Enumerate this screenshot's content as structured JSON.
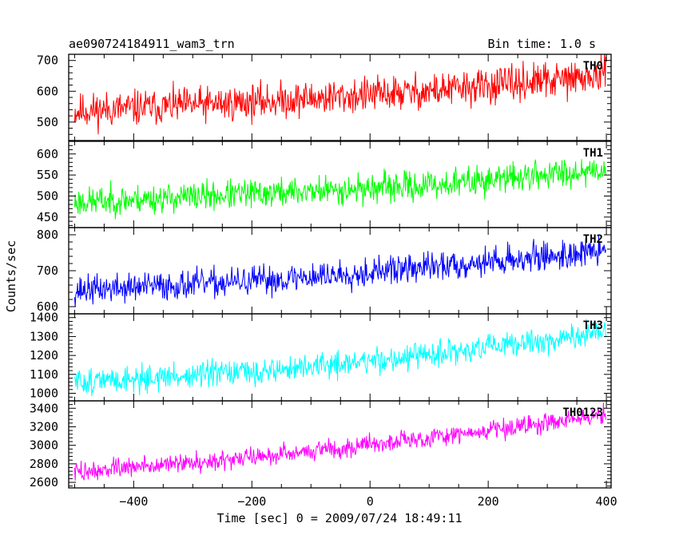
{
  "header": {
    "title": "ae090724184911_wam3_trn",
    "bin_time": "Bin time: 1.0 s"
  },
  "chart_data": {
    "type": "line",
    "xlabel": "Time [sec] 0 = 2009/07/24 18:49:11",
    "ylabel": "Counts/sec",
    "xlim": [
      -510,
      408
    ],
    "x_ticks": [
      -400,
      -200,
      0,
      200,
      400
    ],
    "x": {
      "start": -500,
      "end": 399,
      "step": 1
    },
    "series": [
      {
        "name": "TH0",
        "color": "#ff0000",
        "ylim": [
          440,
          720
        ],
        "y_ticks": [
          500,
          600,
          700
        ],
        "trend": [
          [
            -500,
            535
          ],
          [
            -200,
            565
          ],
          [
            100,
            600
          ],
          [
            400,
            650
          ]
        ],
        "noise": 50,
        "seed": 11
      },
      {
        "name": "TH1",
        "color": "#00ff00",
        "ylim": [
          425,
          630
        ],
        "y_ticks": [
          450,
          500,
          550,
          600
        ],
        "trend": [
          [
            -500,
            485
          ],
          [
            -200,
            505
          ],
          [
            100,
            525
          ],
          [
            400,
            565
          ]
        ],
        "noise": 30,
        "seed": 23
      },
      {
        "name": "TH2",
        "color": "#0000ff",
        "ylim": [
          580,
          820
        ],
        "y_ticks": [
          600,
          700,
          800
        ],
        "trend": [
          [
            -500,
            645
          ],
          [
            -200,
            670
          ],
          [
            100,
            710
          ],
          [
            400,
            755
          ]
        ],
        "noise": 35,
        "seed": 37
      },
      {
        "name": "TH3",
        "color": "#00ffff",
        "ylim": [
          960,
          1420
        ],
        "y_ticks": [
          1000,
          1100,
          1200,
          1300,
          1400
        ],
        "trend": [
          [
            -500,
            1060
          ],
          [
            -200,
            1110
          ],
          [
            100,
            1200
          ],
          [
            400,
            1320
          ]
        ],
        "noise": 60,
        "seed": 51
      },
      {
        "name": "TH0123",
        "color": "#ff00ff",
        "ylim": [
          2540,
          3480
        ],
        "y_ticks": [
          2600,
          2800,
          3000,
          3200,
          3400
        ],
        "trend": [
          [
            -500,
            2710
          ],
          [
            -200,
            2870
          ],
          [
            100,
            3080
          ],
          [
            400,
            3330
          ]
        ],
        "noise": 90,
        "seed": 73
      }
    ]
  }
}
